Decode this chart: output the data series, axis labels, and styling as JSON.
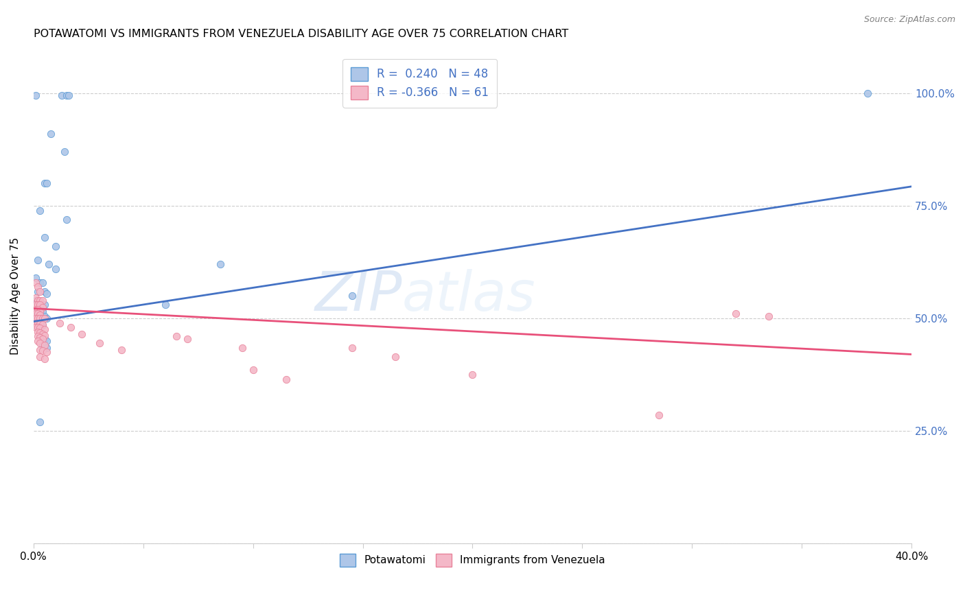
{
  "title": "POTAWATOMI VS IMMIGRANTS FROM VENEZUELA DISABILITY AGE OVER 75 CORRELATION CHART",
  "source": "Source: ZipAtlas.com",
  "ylabel": "Disability Age Over 75",
  "xlim": [
    0.0,
    0.4
  ],
  "ylim": [
    0.0,
    1.1
  ],
  "ytick_values": [
    0.0,
    0.25,
    0.5,
    0.75,
    1.0
  ],
  "xtick_values": [
    0.0,
    0.05,
    0.1,
    0.15,
    0.2,
    0.25,
    0.3,
    0.35,
    0.4
  ],
  "blue_scatter_color": "#aec6e8",
  "pink_scatter_color": "#f4b8c8",
  "blue_edge_color": "#5b9bd5",
  "pink_edge_color": "#e8829a",
  "blue_line_color": "#4472c4",
  "pink_line_color": "#e8507a",
  "watermark": "ZIPatlas",
  "blue_line": [
    0.0,
    0.493,
    0.4,
    0.793
  ],
  "pink_line": [
    0.0,
    0.522,
    0.4,
    0.42
  ],
  "blue_points": [
    [
      0.001,
      0.995
    ],
    [
      0.013,
      0.995
    ],
    [
      0.015,
      0.995
    ],
    [
      0.016,
      0.995
    ],
    [
      0.008,
      0.91
    ],
    [
      0.014,
      0.87
    ],
    [
      0.005,
      0.8
    ],
    [
      0.006,
      0.8
    ],
    [
      0.003,
      0.74
    ],
    [
      0.015,
      0.72
    ],
    [
      0.005,
      0.68
    ],
    [
      0.01,
      0.66
    ],
    [
      0.002,
      0.63
    ],
    [
      0.007,
      0.62
    ],
    [
      0.01,
      0.61
    ],
    [
      0.001,
      0.59
    ],
    [
      0.003,
      0.58
    ],
    [
      0.004,
      0.58
    ],
    [
      0.002,
      0.56
    ],
    [
      0.005,
      0.56
    ],
    [
      0.006,
      0.555
    ],
    [
      0.001,
      0.54
    ],
    [
      0.003,
      0.535
    ],
    [
      0.005,
      0.53
    ],
    [
      0.001,
      0.52
    ],
    [
      0.002,
      0.515
    ],
    [
      0.004,
      0.515
    ],
    [
      0.001,
      0.51
    ],
    [
      0.002,
      0.505
    ],
    [
      0.003,
      0.505
    ],
    [
      0.005,
      0.505
    ],
    [
      0.001,
      0.5
    ],
    [
      0.002,
      0.5
    ],
    [
      0.003,
      0.5
    ],
    [
      0.004,
      0.5
    ],
    [
      0.006,
      0.5
    ],
    [
      0.002,
      0.49
    ],
    [
      0.004,
      0.485
    ],
    [
      0.003,
      0.46
    ],
    [
      0.005,
      0.455
    ],
    [
      0.006,
      0.45
    ],
    [
      0.004,
      0.44
    ],
    [
      0.006,
      0.435
    ],
    [
      0.003,
      0.27
    ],
    [
      0.06,
      0.53
    ],
    [
      0.085,
      0.62
    ],
    [
      0.145,
      0.55
    ],
    [
      0.38,
      1.0
    ]
  ],
  "pink_points": [
    [
      0.001,
      0.58
    ],
    [
      0.002,
      0.57
    ],
    [
      0.003,
      0.56
    ],
    [
      0.001,
      0.545
    ],
    [
      0.002,
      0.54
    ],
    [
      0.003,
      0.54
    ],
    [
      0.004,
      0.54
    ],
    [
      0.001,
      0.53
    ],
    [
      0.002,
      0.53
    ],
    [
      0.003,
      0.53
    ],
    [
      0.004,
      0.525
    ],
    [
      0.001,
      0.52
    ],
    [
      0.002,
      0.52
    ],
    [
      0.003,
      0.515
    ],
    [
      0.001,
      0.51
    ],
    [
      0.002,
      0.51
    ],
    [
      0.003,
      0.508
    ],
    [
      0.001,
      0.5
    ],
    [
      0.002,
      0.5
    ],
    [
      0.003,
      0.5
    ],
    [
      0.004,
      0.5
    ],
    [
      0.005,
      0.5
    ],
    [
      0.001,
      0.49
    ],
    [
      0.002,
      0.49
    ],
    [
      0.003,
      0.488
    ],
    [
      0.004,
      0.487
    ],
    [
      0.001,
      0.48
    ],
    [
      0.002,
      0.48
    ],
    [
      0.003,
      0.478
    ],
    [
      0.005,
      0.475
    ],
    [
      0.002,
      0.47
    ],
    [
      0.003,
      0.468
    ],
    [
      0.004,
      0.465
    ],
    [
      0.005,
      0.462
    ],
    [
      0.002,
      0.46
    ],
    [
      0.003,
      0.458
    ],
    [
      0.004,
      0.455
    ],
    [
      0.002,
      0.45
    ],
    [
      0.003,
      0.445
    ],
    [
      0.005,
      0.44
    ],
    [
      0.003,
      0.43
    ],
    [
      0.004,
      0.428
    ],
    [
      0.006,
      0.425
    ],
    [
      0.003,
      0.415
    ],
    [
      0.005,
      0.41
    ],
    [
      0.012,
      0.49
    ],
    [
      0.017,
      0.48
    ],
    [
      0.022,
      0.465
    ],
    [
      0.03,
      0.445
    ],
    [
      0.04,
      0.43
    ],
    [
      0.065,
      0.46
    ],
    [
      0.07,
      0.455
    ],
    [
      0.095,
      0.435
    ],
    [
      0.1,
      0.385
    ],
    [
      0.115,
      0.365
    ],
    [
      0.145,
      0.435
    ],
    [
      0.165,
      0.415
    ],
    [
      0.2,
      0.375
    ],
    [
      0.285,
      0.285
    ],
    [
      0.32,
      0.51
    ],
    [
      0.335,
      0.505
    ]
  ]
}
